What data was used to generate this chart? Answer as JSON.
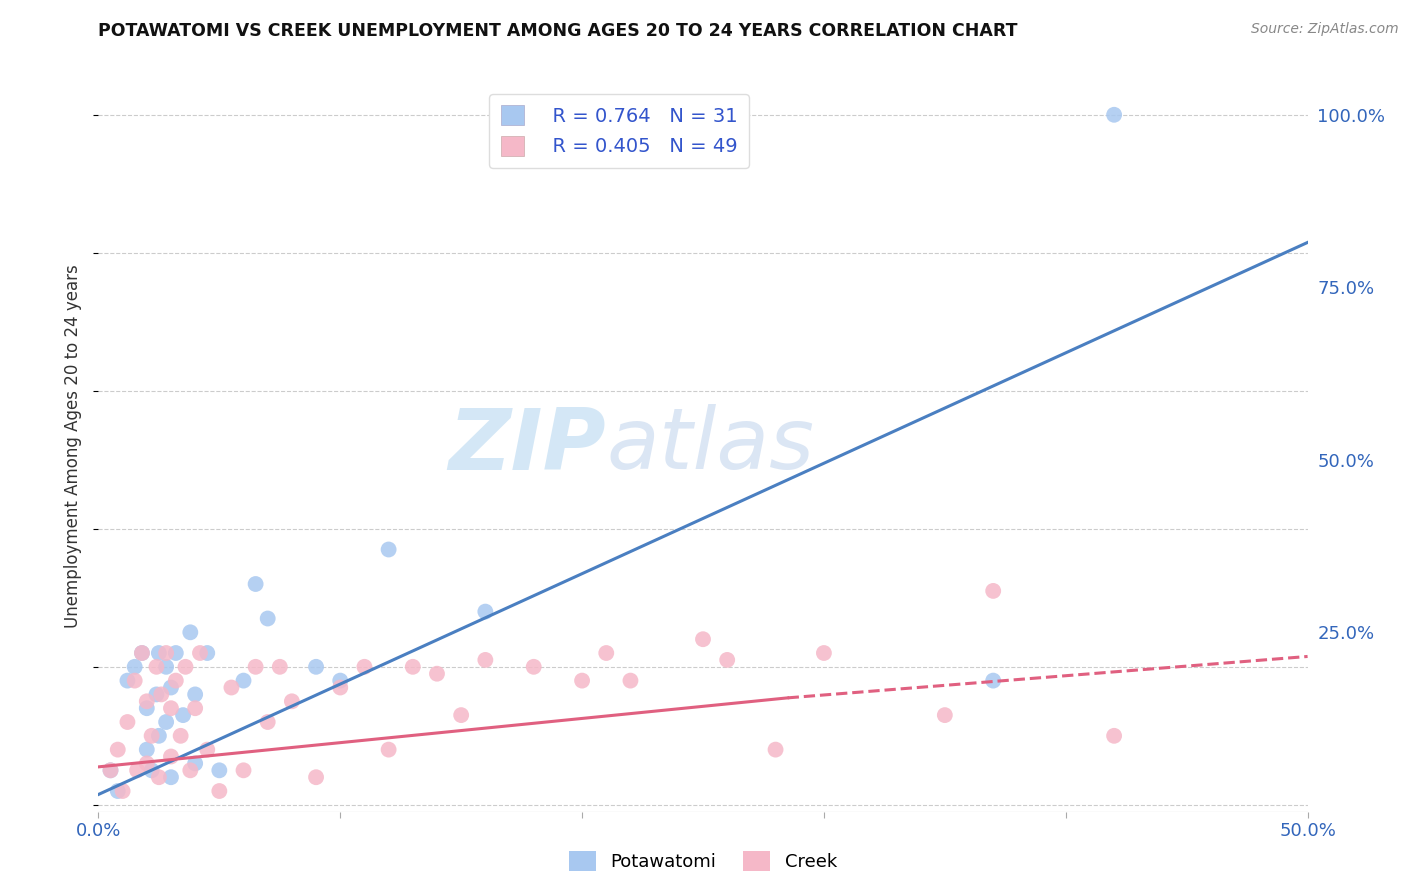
{
  "title": "POTAWATOMI VS CREEK UNEMPLOYMENT AMONG AGES 20 TO 24 YEARS CORRELATION CHART",
  "source": "Source: ZipAtlas.com",
  "ylabel": "Unemployment Among Ages 20 to 24 years",
  "xlim": [
    0.0,
    0.5
  ],
  "ylim": [
    -0.01,
    1.05
  ],
  "grid_color": "#cccccc",
  "background_color": "#ffffff",
  "watermark_zip": "ZIP",
  "watermark_atlas": "atlas",
  "potawatomi_color": "#a8c8f0",
  "creek_color": "#f5b8c8",
  "potawatomi_line_color": "#4a7fc1",
  "creek_line_color": "#e06080",
  "legend_r1": "R = 0.764",
  "legend_n1": "N = 31",
  "legend_r2": "R = 0.405",
  "legend_n2": "N = 49",
  "potawatomi_x": [
    0.005,
    0.008,
    0.012,
    0.015,
    0.018,
    0.02,
    0.02,
    0.022,
    0.024,
    0.025,
    0.025,
    0.028,
    0.028,
    0.03,
    0.03,
    0.032,
    0.035,
    0.038,
    0.04,
    0.04,
    0.045,
    0.05,
    0.06,
    0.065,
    0.07,
    0.09,
    0.1,
    0.12,
    0.16,
    0.37,
    0.42
  ],
  "potawatomi_y": [
    0.05,
    0.02,
    0.18,
    0.2,
    0.22,
    0.08,
    0.14,
    0.05,
    0.16,
    0.1,
    0.22,
    0.12,
    0.2,
    0.04,
    0.17,
    0.22,
    0.13,
    0.25,
    0.06,
    0.16,
    0.22,
    0.05,
    0.18,
    0.32,
    0.27,
    0.2,
    0.18,
    0.37,
    0.28,
    0.18,
    1.0
  ],
  "creek_x": [
    0.005,
    0.008,
    0.01,
    0.012,
    0.015,
    0.016,
    0.018,
    0.02,
    0.02,
    0.022,
    0.024,
    0.025,
    0.026,
    0.028,
    0.03,
    0.03,
    0.032,
    0.034,
    0.036,
    0.038,
    0.04,
    0.042,
    0.045,
    0.05,
    0.055,
    0.06,
    0.065,
    0.07,
    0.075,
    0.08,
    0.09,
    0.1,
    0.11,
    0.12,
    0.13,
    0.14,
    0.15,
    0.16,
    0.18,
    0.2,
    0.21,
    0.22,
    0.25,
    0.26,
    0.28,
    0.3,
    0.35,
    0.37,
    0.42
  ],
  "creek_y": [
    0.05,
    0.08,
    0.02,
    0.12,
    0.18,
    0.05,
    0.22,
    0.06,
    0.15,
    0.1,
    0.2,
    0.04,
    0.16,
    0.22,
    0.07,
    0.14,
    0.18,
    0.1,
    0.2,
    0.05,
    0.14,
    0.22,
    0.08,
    0.02,
    0.17,
    0.05,
    0.2,
    0.12,
    0.2,
    0.15,
    0.04,
    0.17,
    0.2,
    0.08,
    0.2,
    0.19,
    0.13,
    0.21,
    0.2,
    0.18,
    0.22,
    0.18,
    0.24,
    0.21,
    0.08,
    0.22,
    0.13,
    0.31,
    0.1
  ],
  "potawatomi_line": [
    0.0,
    0.5,
    0.015,
    0.815
  ],
  "creek_line_solid": [
    0.0,
    0.285,
    0.055,
    0.155
  ],
  "creek_line_dashed": [
    0.285,
    0.5,
    0.155,
    0.215
  ],
  "x_ticks": [
    0.0,
    0.1,
    0.2,
    0.3,
    0.4,
    0.5
  ],
  "y_ticks_right": [
    0.0,
    0.25,
    0.5,
    0.75,
    1.0
  ],
  "y_labels_right": [
    "",
    "25.0%",
    "50.0%",
    "75.0%",
    "100.0%"
  ]
}
